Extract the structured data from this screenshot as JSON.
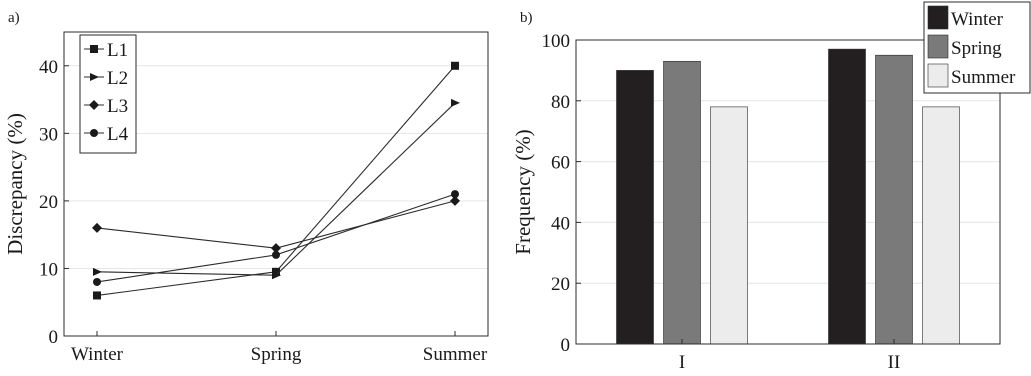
{
  "chart_data": [
    {
      "type": "line",
      "panel_label": "a)",
      "categories": [
        "Winter",
        "Spring",
        "Summer"
      ],
      "series": [
        {
          "name": "L1",
          "marker": "square",
          "values": [
            6,
            9.5,
            40
          ]
        },
        {
          "name": "L2",
          "marker": "triangle-right",
          "values": [
            9.5,
            9,
            34.5
          ]
        },
        {
          "name": "L3",
          "marker": "diamond",
          "values": [
            16,
            13,
            20
          ]
        },
        {
          "name": "L4",
          "marker": "circle",
          "values": [
            8,
            12,
            21
          ]
        }
      ],
      "xlabel": "",
      "ylabel": "Discrepancy (%)",
      "ylim": [
        0,
        45
      ],
      "yticks": [
        "0",
        "10",
        "20",
        "30",
        "40"
      ],
      "grid": true,
      "legend": "top-left",
      "colors": {
        "line": "#2b2b2b",
        "marker": "#1a1a1a"
      }
    },
    {
      "type": "bar",
      "panel_label": "b)",
      "categories": [
        "I",
        "II"
      ],
      "series": [
        {
          "name": "Winter",
          "color": "#231f20",
          "values": [
            90,
            97
          ]
        },
        {
          "name": "Spring",
          "color": "#7a7a7a",
          "values": [
            93,
            95
          ]
        },
        {
          "name": "Summer",
          "color": "#ececec",
          "values": [
            78,
            78
          ]
        }
      ],
      "xlabel": "",
      "ylabel": "Frequency (%)",
      "ylim": [
        0,
        100
      ],
      "yticks": [
        "0",
        "20",
        "40",
        "60",
        "80",
        "100"
      ],
      "grid": true,
      "legend": "top-right"
    }
  ]
}
